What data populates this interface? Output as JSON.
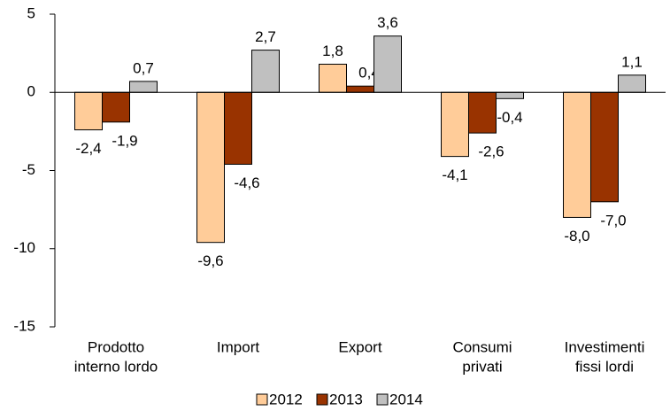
{
  "chart_data": {
    "type": "bar",
    "categories": [
      [
        "Prodotto",
        "interno lordo"
      ],
      [
        "Import"
      ],
      [
        "Export"
      ],
      [
        "Consumi",
        "privati"
      ],
      [
        "Investimenti",
        "fissi lordi"
      ]
    ],
    "series": [
      {
        "name": "2012",
        "color": "#ffcc99",
        "values": [
          -2.4,
          -9.6,
          1.8,
          -4.1,
          -8.0
        ],
        "value_labels": [
          "-2,4",
          "-9,6",
          "1,8",
          "-4,1",
          "-8,0"
        ]
      },
      {
        "name": "2013",
        "color": "#993300",
        "values": [
          -1.9,
          -4.6,
          0.4,
          -2.6,
          -7.0
        ],
        "value_labels": [
          "-1,9",
          "-4,6",
          "0,4",
          "-2,6",
          "-7,0"
        ]
      },
      {
        "name": "2014",
        "color": "#c0c0c0",
        "values": [
          0.7,
          2.7,
          3.6,
          -0.4,
          1.1
        ],
        "value_labels": [
          "0,7",
          "2,7",
          "3,6",
          "-0,4",
          "1,1"
        ]
      }
    ],
    "ylim": [
      -15,
      5
    ],
    "yticks": [
      5,
      0,
      -5,
      -10,
      -15
    ],
    "legend": "bottom"
  }
}
